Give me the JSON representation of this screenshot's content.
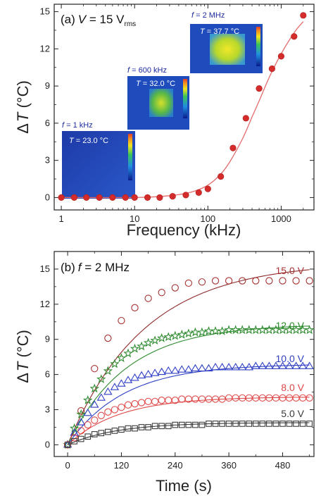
{
  "chart_data": [
    {
      "type": "scatter",
      "panel_label": "(a)",
      "condition": {
        "var": "V",
        "eq": " = 15 V",
        "sub": "rms"
      },
      "xlabel": "Frequency (kHz)",
      "ylabel": {
        "delta": "Δ",
        "var": "T",
        "unit": " (°C)"
      },
      "xscale": "log",
      "xlim": [
        0.8,
        2800
      ],
      "ylim": [
        -1,
        15.6
      ],
      "xticks": [
        1,
        10,
        100,
        1000
      ],
      "xtick_labels": [
        "1",
        "10",
        "100",
        "1000"
      ],
      "yticks": [
        0,
        3,
        6,
        9,
        12,
        15
      ],
      "ytick_labels": [
        "0",
        "3",
        "6",
        "9",
        "12",
        "15"
      ],
      "points": {
        "x": [
          1,
          1.5,
          2.2,
          3.3,
          5,
          7.5,
          10,
          15,
          22,
          33,
          50,
          75,
          100,
          150,
          220,
          330,
          500,
          750,
          1000,
          1500,
          2000
        ],
        "y": [
          0,
          0,
          0,
          0,
          0,
          0,
          0,
          0,
          0,
          0.1,
          0.2,
          0.4,
          0.7,
          1.7,
          4.0,
          6.4,
          8.8,
          10.4,
          11.4,
          13.0,
          14.7
        ]
      },
      "fit": {
        "x": [
          0.9,
          10,
          30,
          60,
          100,
          150,
          200,
          300,
          400,
          500,
          700,
          1000,
          1500,
          2000
        ],
        "y": [
          0,
          0,
          0.15,
          0.45,
          1.0,
          1.9,
          2.9,
          4.8,
          6.5,
          7.8,
          9.8,
          11.6,
          13.3,
          14.2
        ]
      },
      "marker_color": "#d42b2b",
      "fit_color": "#e46b6b",
      "insets": [
        {
          "label_var": "f",
          "label": " = 1 kHz",
          "temp_var": "T",
          "temp": " = 23.0 °C"
        },
        {
          "label_var": "f",
          "label": " = 600 kHz",
          "temp_var": "T",
          "temp": " = 32.0 °C"
        },
        {
          "label_var": "f",
          "label": " = 2 MHz",
          "temp_var": "T",
          "temp": " = 37.7 °C"
        }
      ]
    },
    {
      "type": "scatter",
      "panel_label": "(b)",
      "condition": {
        "var": "f",
        "eq": " = 2 MHz"
      },
      "xlabel": "Time (s)",
      "ylabel": {
        "delta": "Δ",
        "var": "T",
        "unit": " (°C)"
      },
      "xlim": [
        -30,
        550
      ],
      "ylim": [
        -1,
        16.5
      ],
      "xticks": [
        0,
        120,
        240,
        360,
        480
      ],
      "xtick_labels": [
        "0",
        "120",
        "240",
        "360",
        "480"
      ],
      "yticks": [
        0,
        3,
        6,
        9,
        12,
        15
      ],
      "ytick_labels": [
        "0",
        "3",
        "6",
        "9",
        "12",
        "15"
      ],
      "x": [
        0,
        15,
        30,
        45,
        60,
        75,
        90,
        105,
        120,
        135,
        150,
        165,
        180,
        195,
        210,
        225,
        240,
        255,
        270,
        285,
        300,
        315,
        330,
        345,
        360,
        375,
        390,
        405,
        420,
        435,
        450,
        465,
        480,
        495,
        510,
        525,
        540
      ],
      "series": [
        {
          "name": "15.0 V",
          "marker": "circle",
          "color": "#a83232",
          "fit_color": "#8e2a2a",
          "x": [
            0,
            30,
            60,
            90,
            120,
            150,
            180,
            210,
            240,
            270,
            300,
            330,
            360,
            390,
            420,
            450,
            480,
            510,
            540
          ],
          "values": [
            0,
            2.9,
            6.5,
            9.1,
            10.6,
            11.7,
            12.5,
            13.0,
            13.4,
            13.8,
            13.9,
            14.0,
            14.0,
            14.0,
            14.0,
            14.0,
            14.0,
            14.0,
            14.0
          ],
          "fit_tau": 170,
          "fit_amp": 15.6
        },
        {
          "name": "12.0 V",
          "marker": "star",
          "color": "#2e8b2e",
          "fit_color": "#2e8b2e",
          "values": [
            0,
            1.4,
            2.6,
            3.8,
            4.8,
            5.6,
            6.3,
            6.9,
            7.4,
            7.8,
            8.2,
            8.4,
            8.7,
            8.9,
            9.1,
            9.2,
            9.3,
            9.4,
            9.5,
            9.6,
            9.6,
            9.7,
            9.7,
            9.7,
            9.8,
            9.8,
            9.8,
            9.8,
            9.8,
            9.8,
            9.8,
            9.8,
            9.8,
            9.8,
            9.8,
            9.8,
            9.8
          ],
          "fit_tau": 130,
          "fit_amp": 10.3
        },
        {
          "name": "10.0 V",
          "marker": "triangle",
          "color": "#2f3fc4",
          "fit_color": "#2f3fc4",
          "values": [
            0,
            1.0,
            1.9,
            2.7,
            3.4,
            4.0,
            4.5,
            4.9,
            5.2,
            5.5,
            5.7,
            5.9,
            6.0,
            6.1,
            6.2,
            6.3,
            6.3,
            6.4,
            6.4,
            6.5,
            6.5,
            6.5,
            6.6,
            6.6,
            6.6,
            6.6,
            6.6,
            6.6,
            6.7,
            6.7,
            6.7,
            6.7,
            6.7,
            6.7,
            6.7,
            6.7,
            6.7
          ],
          "fit_tau": 125,
          "fit_amp": 6.9
        },
        {
          "name": "8.0 V",
          "marker": "circle",
          "color": "#e04848",
          "fit_color": "#e04848",
          "values": [
            0,
            0.6,
            1.2,
            1.7,
            2.1,
            2.5,
            2.8,
            3.0,
            3.2,
            3.4,
            3.5,
            3.6,
            3.7,
            3.7,
            3.8,
            3.8,
            3.8,
            3.9,
            3.9,
            3.9,
            3.9,
            3.9,
            3.9,
            3.9,
            4.0,
            4.0,
            4.0,
            4.0,
            4.0,
            4.0,
            4.0,
            4.0,
            4.0,
            4.0,
            4.0,
            4.0,
            4.0
          ],
          "fit_tau": 115,
          "fit_amp": 4.1
        },
        {
          "name": "5.0 V",
          "marker": "square",
          "color": "#3a3a3a",
          "fit_color": "#3a3a3a",
          "values": [
            0,
            0.3,
            0.5,
            0.7,
            0.9,
            1.0,
            1.1,
            1.2,
            1.3,
            1.4,
            1.4,
            1.5,
            1.5,
            1.6,
            1.6,
            1.6,
            1.7,
            1.7,
            1.7,
            1.7,
            1.7,
            1.8,
            1.8,
            1.8,
            1.8,
            1.8,
            1.8,
            1.8,
            1.8,
            1.8,
            1.8,
            1.8,
            1.8,
            1.8,
            1.8,
            1.8,
            1.8
          ],
          "fit_tau": 110,
          "fit_amp": 1.9
        }
      ]
    }
  ]
}
